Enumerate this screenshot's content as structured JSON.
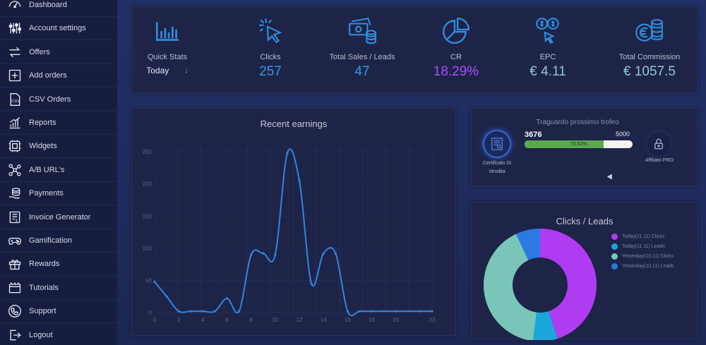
{
  "sidebar": {
    "items": [
      {
        "label": "Dashboard",
        "icon": "speedometer-icon"
      },
      {
        "label": "Account settings",
        "icon": "sliders-icon"
      },
      {
        "label": "Offers",
        "icon": "swap-arrows-icon"
      },
      {
        "label": "Add orders",
        "icon": "plus-square-icon"
      },
      {
        "label": "CSV Orders",
        "icon": "csv-file-icon"
      },
      {
        "label": "Reports",
        "icon": "growth-chart-icon"
      },
      {
        "label": "Widgets",
        "icon": "widget-frame-icon"
      },
      {
        "label": "A/B URL's",
        "icon": "network-icon"
      },
      {
        "label": "Payments",
        "icon": "coins-hand-icon"
      },
      {
        "label": "Invoice Generator",
        "icon": "invoice-icon"
      },
      {
        "label": "Gamification",
        "icon": "gamepad-icon"
      },
      {
        "label": "Rewards",
        "icon": "gift-icon"
      },
      {
        "label": "Tutorials",
        "icon": "film-reel-icon"
      },
      {
        "label": "Support",
        "icon": "phone-support-icon"
      },
      {
        "label": "Logout",
        "icon": "logout-icon"
      }
    ]
  },
  "stats": {
    "quick_stats_label": "Quick Stats",
    "period_value": "Today",
    "period_arrow": "↓",
    "clicks_label": "Clicks",
    "clicks_value": "257",
    "sales_label": "Total Sales / Leads",
    "sales_value": "47",
    "cr_label": "CR",
    "cr_value": "18.29%",
    "epc_label": "EPC",
    "epc_value": "€ 4.11",
    "commission_label": "Total Commission",
    "commission_value": "€ 1057.5"
  },
  "earnings": {
    "title": "Recent earnings"
  },
  "trophy": {
    "title": "Traguardo prossimo trofeo",
    "current": "3676",
    "target": "5000",
    "percent_text": "73.52%",
    "percent_fraction": 0.7352,
    "left_label_line1": "Certificato Di",
    "left_label_line2": "Vendita",
    "right_label": "Affiliato PRO"
  },
  "clicks_leads": {
    "title": "Clicks / Leads"
  },
  "chart_data": [
    {
      "type": "line",
      "title": "Recent earnings",
      "xlabel": "",
      "ylabel": "",
      "x": [
        0,
        1,
        2,
        3,
        4,
        5,
        6,
        7,
        8,
        9,
        10,
        11,
        12,
        13,
        14,
        15,
        16,
        17,
        18,
        19,
        20,
        21,
        22,
        23
      ],
      "values": [
        48,
        25,
        2,
        2,
        2,
        2,
        22,
        2,
        90,
        92,
        90,
        248,
        205,
        45,
        92,
        92,
        2,
        2,
        2,
        2,
        2,
        2,
        2,
        2
      ],
      "x_ticks": [
        "0",
        "2",
        "4",
        "6",
        "8",
        "10",
        "12",
        "14",
        "16",
        "18",
        "20",
        "23"
      ],
      "y_ticks": [
        "0",
        "50",
        "100",
        "150",
        "200",
        "250"
      ],
      "ylim": [
        0,
        260
      ],
      "xlim": [
        0,
        23
      ],
      "grid": true,
      "color": "#2f86e6"
    },
    {
      "type": "pie",
      "title": "Clicks / Leads",
      "legend_position": "right",
      "series": [
        {
          "name": "Today(11.11) Clicks",
          "value": 45,
          "color": "#b03cf2"
        },
        {
          "name": "Today(11.11) Leads",
          "value": 7,
          "color": "#1aa7dd"
        },
        {
          "name": "Yesterday(10.11) Clicks",
          "value": 41,
          "color": "#79c6b8"
        },
        {
          "name": "Yesterday(10.11) Leads",
          "value": 7,
          "color": "#2a7ae2"
        }
      ]
    }
  ]
}
